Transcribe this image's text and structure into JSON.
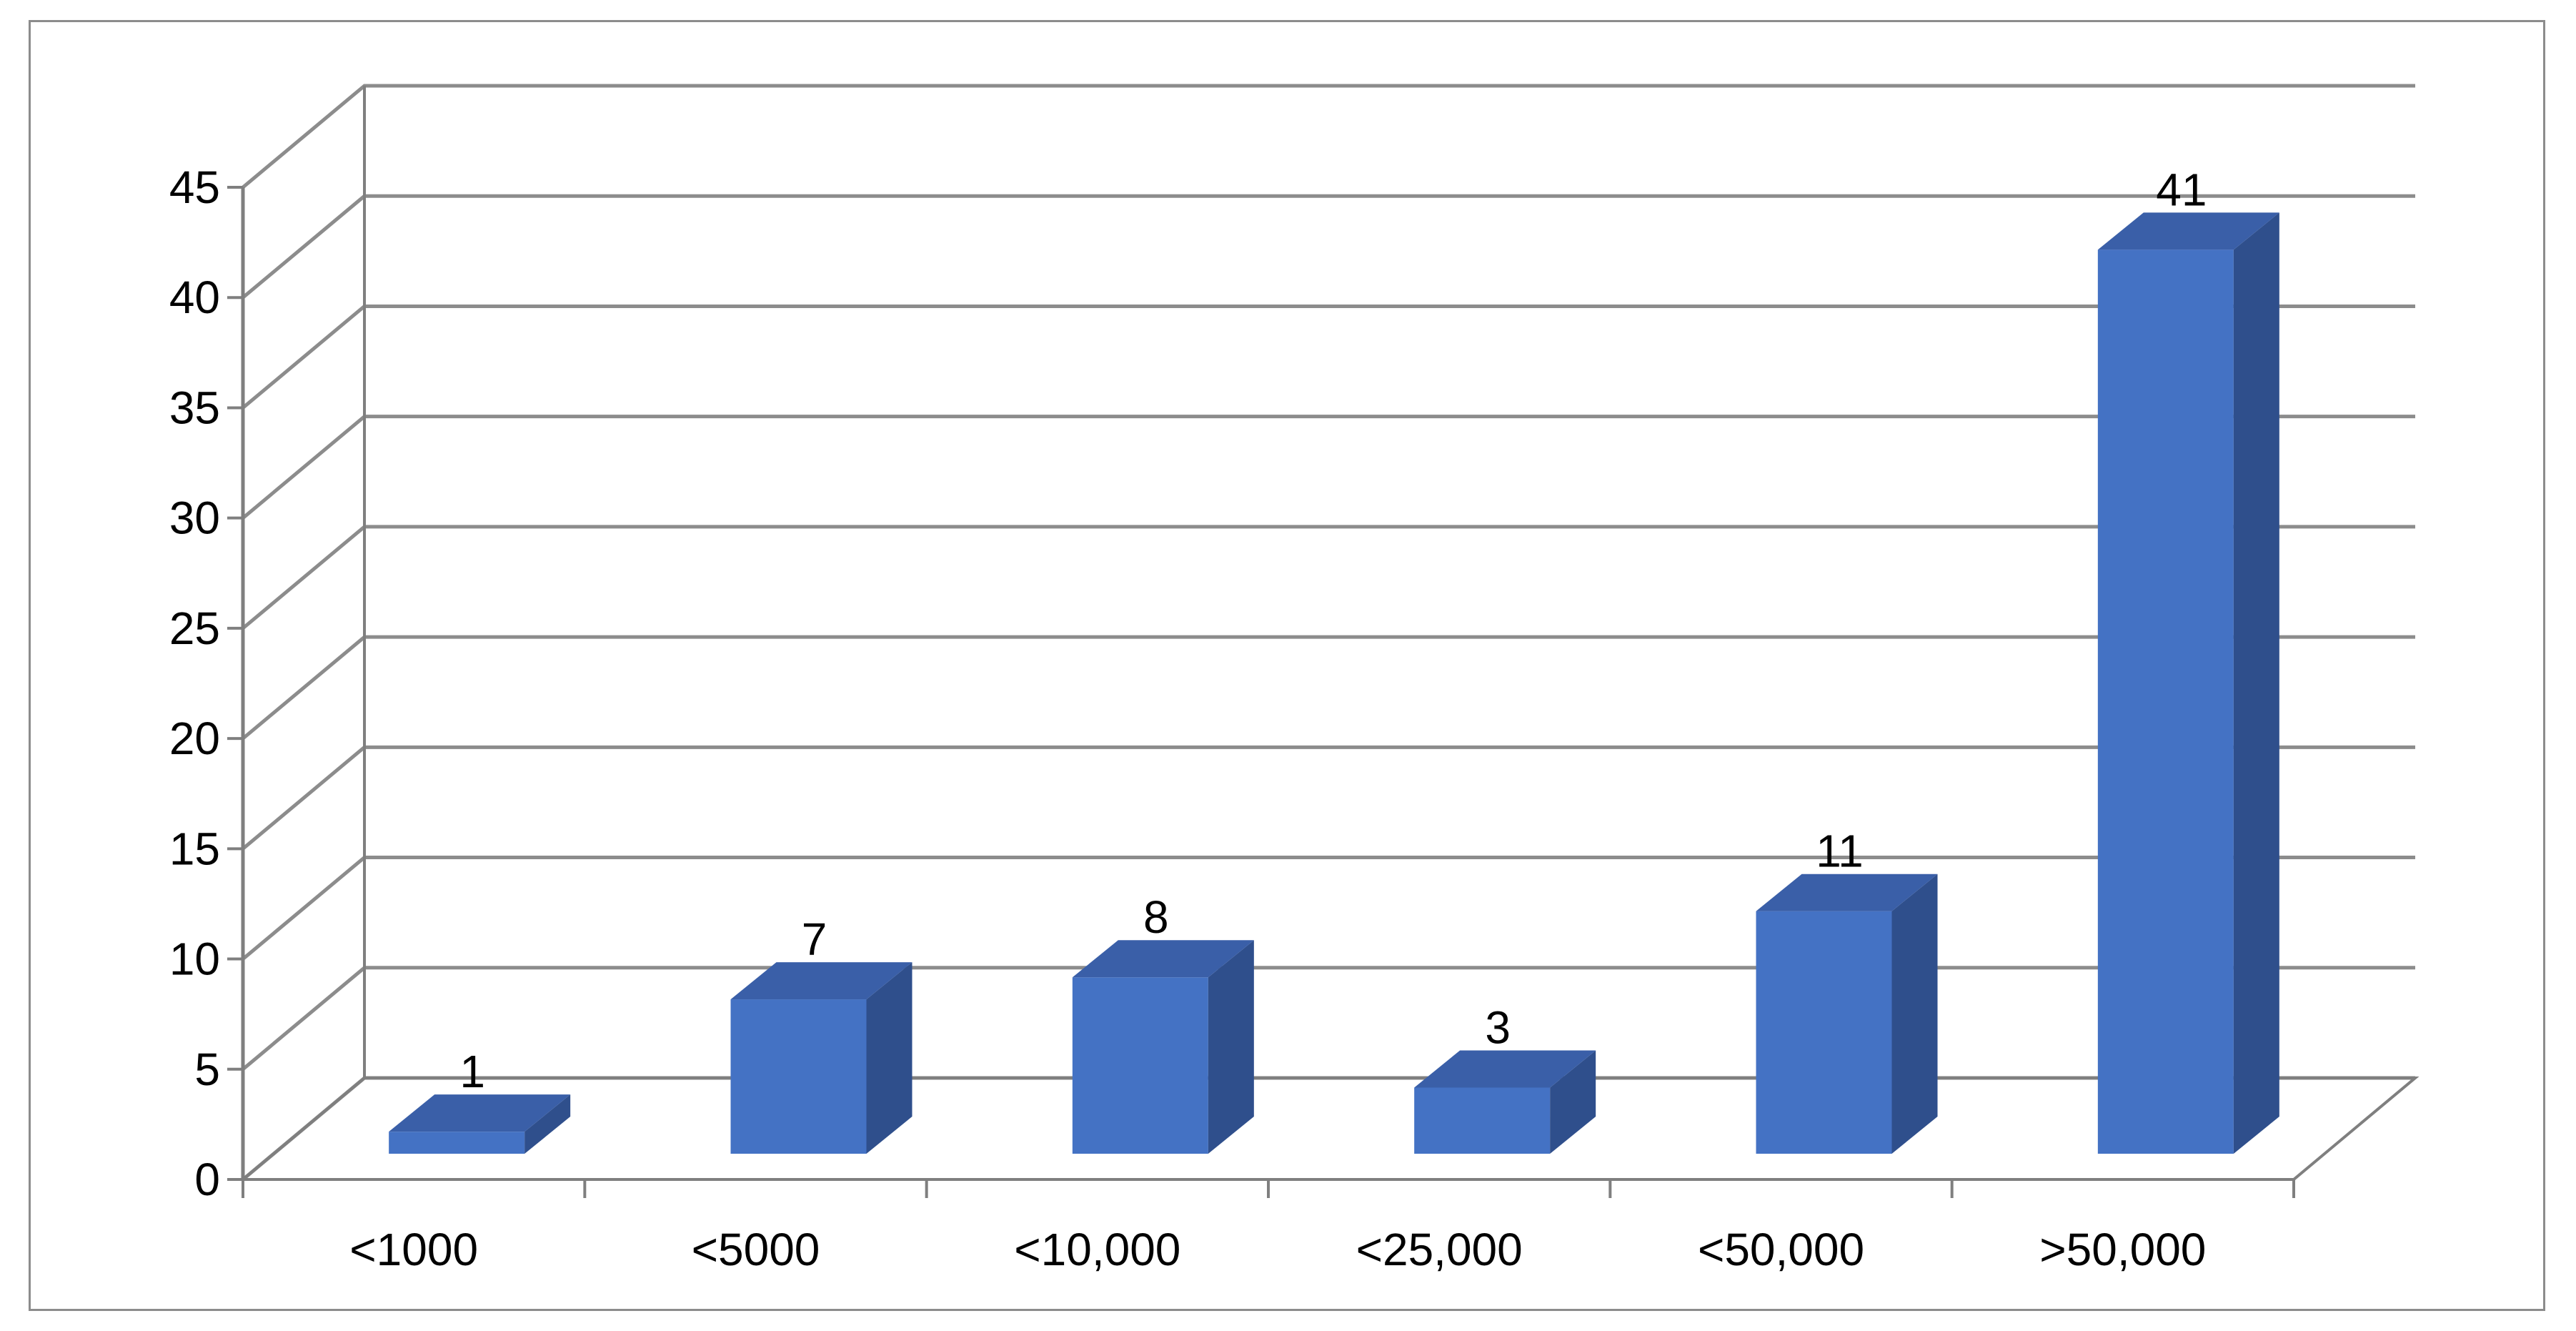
{
  "chart_data": {
    "type": "bar",
    "categories": [
      "<1000",
      "<5000",
      "<10,000",
      "<25,000",
      "<50,000",
      ">50,000"
    ],
    "values": [
      1,
      7,
      8,
      3,
      11,
      41
    ],
    "data_labels": [
      "1",
      "7",
      "8",
      "3",
      "11",
      "41"
    ],
    "ylim": [
      0,
      45
    ],
    "yticks": [
      0,
      5,
      10,
      15,
      20,
      25,
      30,
      35,
      40,
      45
    ],
    "ytick_labels": [
      "0",
      "5",
      "10",
      "15",
      "20",
      "25",
      "30",
      "35",
      "40",
      "45"
    ],
    "title": "",
    "xlabel": "",
    "ylabel": "",
    "grid": true,
    "legend": "none",
    "style": "3d-column",
    "colors": {
      "bar_front": "#4472c4",
      "bar_side": "#2f4f8c",
      "bar_top": "#3a5fa8",
      "grid": "#8c8c8c",
      "axis": "#7f7f7f",
      "frame": "#8c8c8c"
    }
  }
}
